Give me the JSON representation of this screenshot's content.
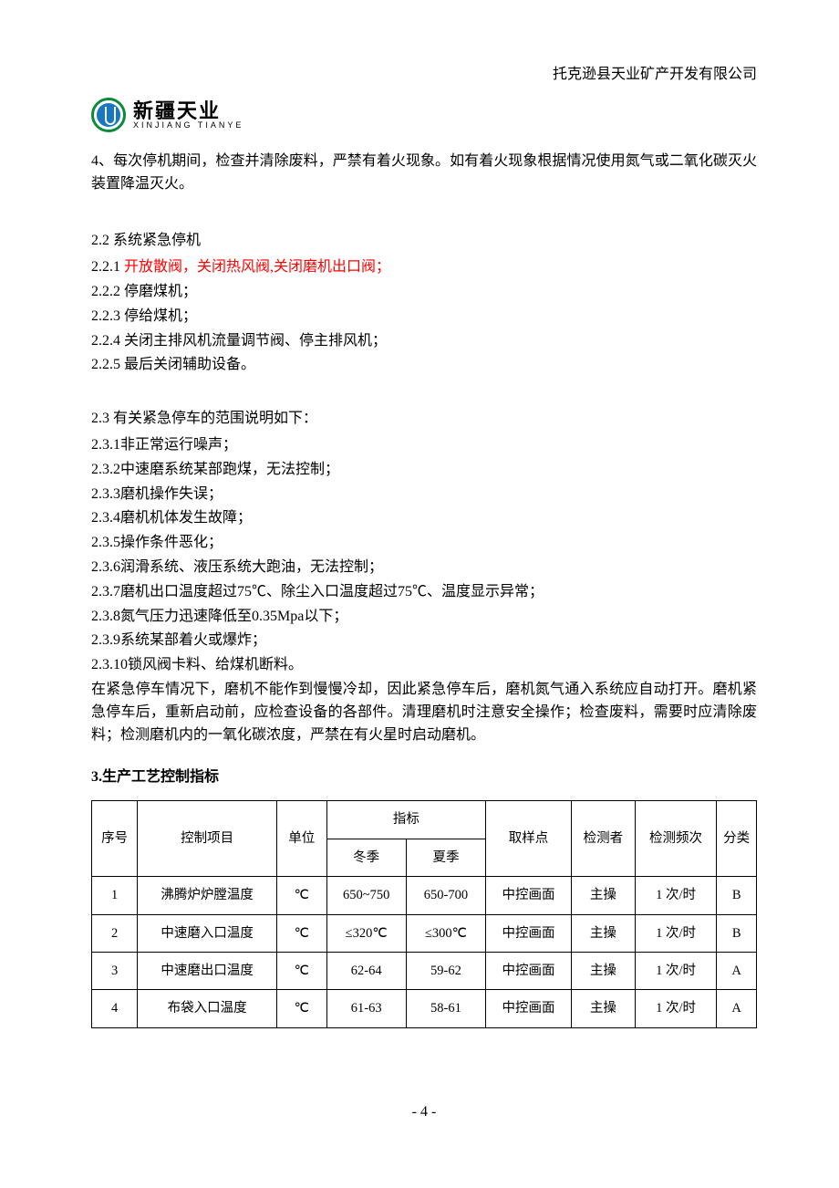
{
  "header": {
    "company": "托克逊县天业矿产开发有限公司",
    "logo_cn": "新疆天业",
    "logo_en": "XINJIANG  TIANYE"
  },
  "paragraphs": {
    "p4": "4、每次停机期间，检查并清除废料，严禁有着火现象。如有着火现象根据情况使用氮气或二氧化碳灭火装置降温灭火。"
  },
  "section22": {
    "title": "2.2 系统紧急停机",
    "items": {
      "i1_num": "2.2.1 ",
      "i1_txt": "开放散阀，关闭热风阀,关闭磨机出口阀；",
      "i2": "2.2.2  停磨煤机；",
      "i3": "2.2.3  停给煤机；",
      "i4": "2.2.4  关闭主排风机流量调节阀、停主排风机；",
      "i5": "2.2.5  最后关闭辅助设备。"
    }
  },
  "section23": {
    "title": "2.3 有关紧急停车的范围说明如下：",
    "items": {
      "i1": "2.3.1非正常运行噪声；",
      "i2": "2.3.2中速磨系统某部跑煤，无法控制；",
      "i3": "2.3.3磨机操作失误；",
      "i4": "2.3.4磨机机体发生故障；",
      "i5": "2.3.5操作条件恶化；",
      "i6": "2.3.6润滑系统、液压系统大跑油，无法控制；",
      "i7": "2.3.7磨机出口温度超过75℃、除尘入口温度超过75℃、温度显示异常；",
      "i8": "2.3.8氮气压力迅速降低至0.35Mpa以下；",
      "i9": "2.3.9系统某部着火或爆炸；",
      "i10": "2.3.10锁风阀卡料、给煤机断料。"
    },
    "tail": "在紧急停车情况下，磨机不能作到慢慢冷却，因此紧急停车后，磨机氮气通入系统应自动打开。磨机紧急停车后，重新启动前，应检查设备的各部件。清理磨机时注意安全操作；检查废料，需要时应清除废料；检测磨机内的一氧化碳浓度，严禁在有火星时启动磨机。"
  },
  "section3": {
    "title": "3.生产工艺控制指标"
  },
  "table": {
    "headers": {
      "seq": "序号",
      "item": "控制项目",
      "unit": "单位",
      "indicator": "指标",
      "winter": "冬季",
      "summer": "夏季",
      "point": "取样点",
      "who": "检测者",
      "freq": "检测频次",
      "cat": "分类"
    },
    "rows": [
      {
        "seq": "1",
        "item": "沸腾炉炉膛温度",
        "unit": "℃",
        "winter": "650~750",
        "summer": "650-700",
        "point": "中控画面",
        "who": "主操",
        "freq": "1 次/时",
        "cat": "B"
      },
      {
        "seq": "2",
        "item": "中速磨入口温度",
        "unit": "℃",
        "winter": "≤320℃",
        "summer": "≤300℃",
        "point": "中控画面",
        "who": "主操",
        "freq": "1 次/时",
        "cat": "B"
      },
      {
        "seq": "3",
        "item": "中速磨出口温度",
        "unit": "℃",
        "winter": "62-64",
        "summer": "59-62",
        "point": "中控画面",
        "who": "主操",
        "freq": "1 次/时",
        "cat": "A"
      },
      {
        "seq": "4",
        "item": "布袋入口温度",
        "unit": "℃",
        "winter": "61-63",
        "summer": "58-61",
        "point": "中控画面",
        "who": "主操",
        "freq": "1 次/时",
        "cat": "A"
      }
    ]
  },
  "page_number": "- 4 -",
  "style": {
    "text_color": "#000000",
    "highlight_color": "#ff0000",
    "background": "#ffffff",
    "font_size_body": 16,
    "font_size_table": 14.5,
    "logo_green": "#0a8a3a",
    "logo_blue": "#1976c1"
  }
}
